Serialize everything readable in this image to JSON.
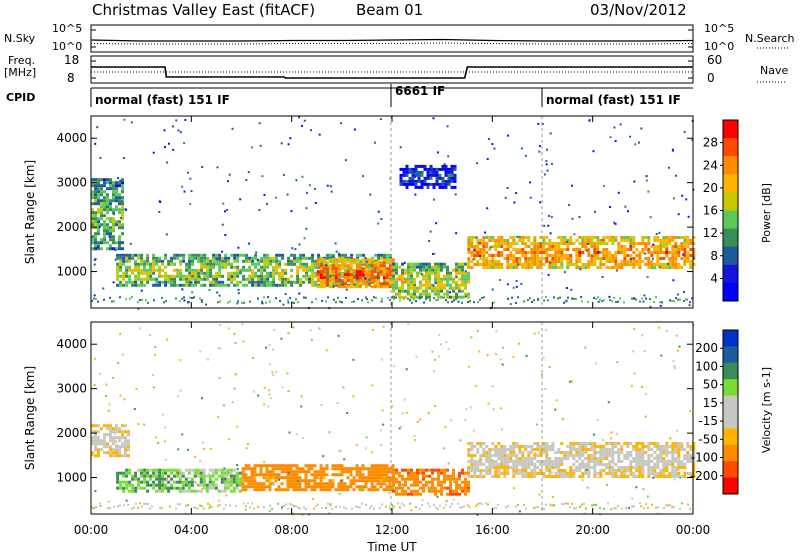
{
  "header": {
    "title": "Christmas Valley East (fitACF)",
    "beam": "Beam 01",
    "date": "03/Nov/2012"
  },
  "noise_panel": {
    "left_label": "N.Sky",
    "right_label": "N.Search",
    "left_ticks": [
      "10^5",
      "10^0"
    ],
    "right_ticks": [
      "10^5",
      "10^0"
    ]
  },
  "freq_panel": {
    "left_label": "Freq.",
    "left_unit": "[MHz]",
    "right_label": "Nave",
    "left_ticks": [
      "18",
      "8"
    ],
    "right_ticks": [
      "60",
      "0"
    ]
  },
  "cpid_panel": {
    "label": "CPID",
    "segments": [
      {
        "start_hour": 0,
        "label": "normal (fast) 151 IF"
      },
      {
        "start_hour": 12,
        "label": "6661 IF"
      },
      {
        "start_hour": 18,
        "label": "normal (fast) 151 IF"
      }
    ]
  },
  "power_panel": {
    "ylabel": "Slant Range [km]",
    "yticks": [
      "4000",
      "3000",
      "2000",
      "1000"
    ],
    "colorbar_label": "Power [dB]",
    "colorbar_ticks": [
      "28",
      "24",
      "20",
      "16",
      "12",
      "8",
      "4"
    ],
    "colorbar_colors": [
      "#ff0000",
      "#ff4a00",
      "#ff8c00",
      "#ffb400",
      "#c8c800",
      "#5ac85a",
      "#3c8c5a",
      "#1e5aa0",
      "#1414dc",
      "#0000ff"
    ]
  },
  "velocity_panel": {
    "ylabel": "Slant Range [km]",
    "yticks": [
      "4000",
      "3000",
      "2000",
      "1000"
    ],
    "colorbar_label": "Velocity [m s-1]",
    "colorbar_ticks": [
      "200",
      "100",
      "50",
      "15",
      "-15",
      "-50",
      "-100",
      "-200"
    ],
    "colorbar_colors": [
      "#0032c8",
      "#1e5aa0",
      "#3c8c5a",
      "#78dc32",
      "#c8c8c0",
      "#c8c8c0",
      "#ffb400",
      "#ff8c00",
      "#ff4a00",
      "#ff0000"
    ]
  },
  "xaxis": {
    "label": "Time UT",
    "ticks": [
      "00:00",
      "04:00",
      "08:00",
      "12:00",
      "16:00",
      "20:00",
      "00:00"
    ]
  },
  "chart_data": [
    {
      "type": "line",
      "name": "noise",
      "x": [
        0,
        2,
        4,
        6,
        8,
        10,
        12,
        14,
        16,
        18,
        20,
        22,
        24
      ],
      "series": [
        {
          "name": "N.Sky",
          "values": [
            2.2,
            2.0,
            2.0,
            2.0,
            2.1,
            2.1,
            2.2,
            2.3,
            2.1,
            2.0,
            2.0,
            2.0,
            2.1
          ]
        },
        {
          "name": "N.Search",
          "values": [
            1.5,
            1.4,
            1.4,
            1.4,
            1.5,
            1.5,
            1.5,
            1.6,
            1.5,
            1.4,
            1.4,
            1.4,
            1.5
          ]
        }
      ],
      "xlim": [
        0,
        24
      ],
      "ylim": [
        0,
        5
      ]
    },
    {
      "type": "line",
      "name": "frequency",
      "x": [
        0,
        2.95,
        3.0,
        7.7,
        7.75,
        14.9,
        15.0,
        24
      ],
      "series": [
        {
          "name": "Freq",
          "values": [
            14,
            14,
            10,
            10,
            9.6,
            9.6,
            14,
            14
          ]
        },
        {
          "name": "Nave",
          "values": [
            12,
            12,
            12,
            12,
            12,
            12,
            12,
            12
          ]
        }
      ],
      "xlim": [
        0,
        24
      ],
      "ylim": [
        8,
        18
      ]
    },
    {
      "type": "heatmap",
      "name": "power",
      "xlim": [
        0,
        24
      ],
      "ylim": [
        180,
        4500
      ],
      "bands": [
        {
          "t0": 0.0,
          "t1": 1.2,
          "r0": 1500,
          "r1": 3100,
          "value": 14
        },
        {
          "t0": 1.0,
          "t1": 12.0,
          "r0": 700,
          "r1": 1400,
          "value": 16
        },
        {
          "t0": 9.0,
          "t1": 12.0,
          "r0": 650,
          "r1": 1300,
          "value": 26
        },
        {
          "t0": 12.0,
          "t1": 15.0,
          "r0": 400,
          "r1": 1200,
          "value": 18
        },
        {
          "t0": 15.0,
          "t1": 24.0,
          "r0": 1100,
          "r1": 1800,
          "value": 24
        },
        {
          "t0": 12.3,
          "t1": 14.5,
          "r0": 2900,
          "r1": 3400,
          "value": 6
        }
      ]
    },
    {
      "type": "heatmap",
      "name": "velocity",
      "xlim": [
        0,
        24
      ],
      "ylim": [
        180,
        4500
      ],
      "bands": [
        {
          "t0": 0.0,
          "t1": 1.5,
          "r0": 1500,
          "r1": 2200,
          "value": 0
        },
        {
          "t0": 1.0,
          "t1": 3.5,
          "r0": 700,
          "r1": 1200,
          "value": 40
        },
        {
          "t0": 3.5,
          "t1": 6.0,
          "r0": 700,
          "r1": 1200,
          "value": 30
        },
        {
          "t0": 6.0,
          "t1": 12.0,
          "r0": 700,
          "r1": 1300,
          "value": -60
        },
        {
          "t0": 12.0,
          "t1": 15.0,
          "r0": 600,
          "r1": 1200,
          "value": -80
        },
        {
          "t0": 15.0,
          "t1": 24.0,
          "r0": 1000,
          "r1": 1800,
          "value": 0
        }
      ]
    }
  ]
}
